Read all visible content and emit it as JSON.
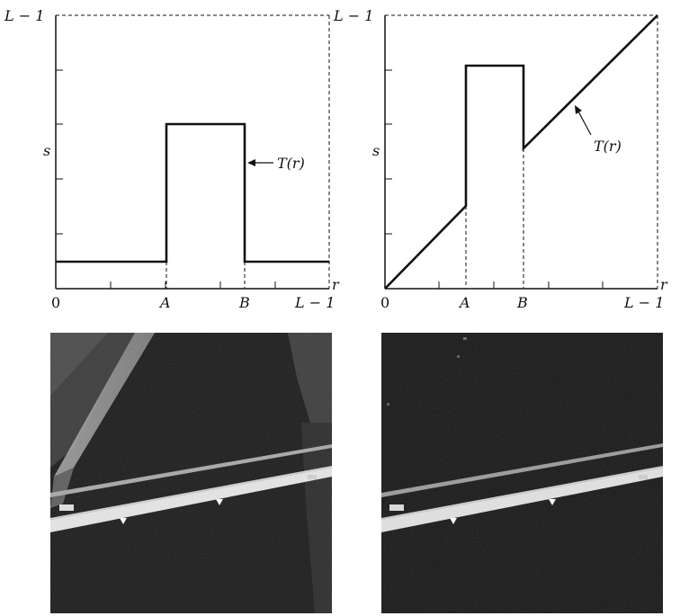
{
  "left_plot": {
    "y_top_label": "L − 1",
    "y_axis_label": "s",
    "x_zero": "0",
    "x_a": "A",
    "x_b": "B",
    "x_end": "L − 1",
    "x_axis_label": "r",
    "curve_label": "T(r)"
  },
  "right_plot": {
    "y_top_label": "L − 1",
    "y_axis_label": "s",
    "x_zero": "0",
    "x_a": "A",
    "x_b": "B",
    "x_end": "L − 1",
    "x_axis_label": "r",
    "curve_label": "T(r)"
  },
  "images": {
    "left": "left-aerial-photo",
    "right": "right-aerial-photo"
  }
}
